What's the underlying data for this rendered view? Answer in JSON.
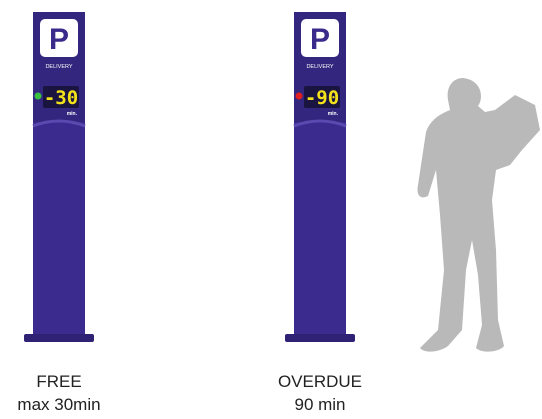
{
  "posts": [
    {
      "sign": "P",
      "label": "DELIVERY",
      "display": "-30",
      "unit": "min.",
      "status": "FREE",
      "caption": "max 30min"
    },
    {
      "sign": "P",
      "label": "DELIVERY",
      "display": "-90",
      "unit": "min.",
      "status": "OVERDUE",
      "caption": "90 min"
    }
  ]
}
